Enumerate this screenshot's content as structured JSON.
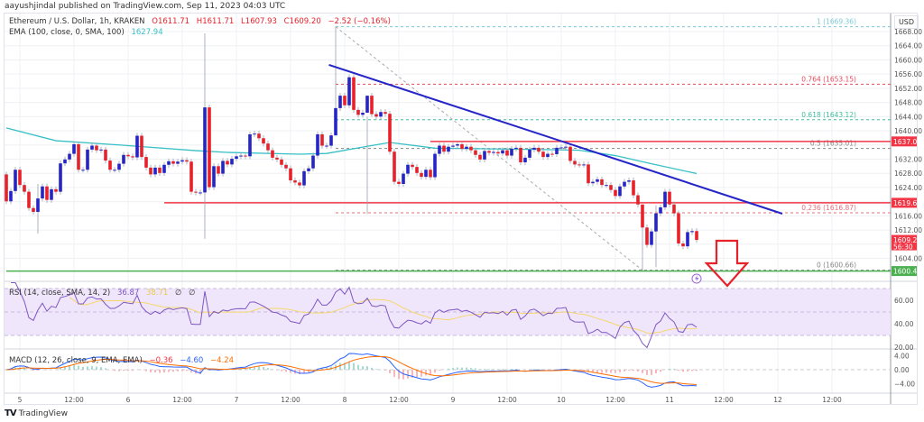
{
  "publisher_line": "aayushjindal published on TradingView.com, Sep 11, 2023 04:03 UTC",
  "legend": {
    "symbol": "Ethereum / U.S. Dollar, 1h, KRAKEN",
    "open": "O1611.71",
    "high": "H1611.71",
    "low": "L1607.93",
    "close": "C1609.20",
    "change": "−2.52 (−0.16%)",
    "ema_label": "EMA (100, close, 0, SMA, 100)",
    "ema_value": "1627.94"
  },
  "rsi_legend": {
    "label": "RSI (14, close, SMA, 14, 2)",
    "value": "36.87",
    "sma": "38.71",
    "extra1": "∅",
    "extra2": "∅"
  },
  "macd_legend": {
    "label": "MACD (12, 26, close, 9, EMA, EMA)",
    "hist": "−0.36",
    "macd": "−4.60",
    "signal": "−4.24"
  },
  "price_axis": {
    "currency": "USD",
    "ticks": [
      "1668.00",
      "1664.00",
      "1660.00",
      "1656.00",
      "1652.00",
      "1648.00",
      "1644.00",
      "1640.00",
      "1632.00",
      "1628.00",
      "1624.00",
      "1616.00",
      "1612.00",
      "1604.00"
    ],
    "tags": [
      {
        "text": "1637.00",
        "value": 1637.0,
        "color": "#f23645"
      },
      {
        "text": "1619.68",
        "value": 1619.68,
        "color": "#f23645"
      },
      {
        "text": "1609.20",
        "sub": "56:30",
        "value": 1609.2,
        "color": "#f23645"
      },
      {
        "text": "1600.42",
        "value": 1600.42,
        "color": "#4caf50"
      }
    ]
  },
  "rsi_axis": {
    "ticks": [
      "60.00",
      "40.00",
      "20.00"
    ]
  },
  "macd_axis": {
    "ticks": [
      "4.00",
      "0.00",
      "−4.00"
    ]
  },
  "time_axis": {
    "labels": [
      "5",
      "12:00",
      "6",
      "12:00",
      "7",
      "12:00",
      "8",
      "12:00",
      "9",
      "12:00",
      "10",
      "12:00",
      "11",
      "12:00",
      "12",
      "12:00"
    ]
  },
  "footer": {
    "brand": "TradingView"
  },
  "colors": {
    "up": "#2424c8",
    "down": "#e8202a",
    "ema": "#37c0c6",
    "trendline": "#2424c8",
    "hline": "#f23645",
    "support": "#4caf50",
    "rsi": "#7e57c2",
    "rsi_sma": "#f5d76e",
    "macd": "#2962ff",
    "signal": "#ff6d00",
    "arrow": "#e8202a"
  },
  "chart_data": {
    "type": "candlestick",
    "symbol": "ETHUSD",
    "interval": "1h",
    "first_candle_time": "2023-09-04 21:00",
    "ylim": [
      1598,
      1671
    ],
    "first_open": 1627.7,
    "closes": [
      1620.1,
      1623.0,
      1629.0,
      1624.7,
      1622.8,
      1618.2,
      1617.1,
      1620.9,
      1624.3,
      1620.5,
      1623.5,
      1622.8,
      1630.8,
      1631.9,
      1633.5,
      1636.2,
      1629.0,
      1629.0,
      1634.7,
      1635.8,
      1634.5,
      1634.7,
      1631.6,
      1629.0,
      1629.0,
      1630.7,
      1633.2,
      1632.8,
      1632.5,
      1638.6,
      1632.6,
      1629.6,
      1627.7,
      1629.6,
      1628.1,
      1630.4,
      1631.4,
      1630.7,
      1631.3,
      1631.7,
      1631.3,
      1622.8,
      1622.6,
      1622.6,
      1646.6,
      1624.1,
      1630.0,
      1627.9,
      1631.5,
      1630.5,
      1632.1,
      1632.8,
      1633.0,
      1632.8,
      1639.0,
      1639.2,
      1637.9,
      1636.4,
      1634.5,
      1632.4,
      1631.9,
      1630.4,
      1629.4,
      1626.0,
      1625.4,
      1624.6,
      1628.6,
      1629.4,
      1633.0,
      1639.0,
      1635.8,
      1635.8,
      1638.7,
      1646.4,
      1649.9,
      1647.2,
      1655.1,
      1645.9,
      1644.5,
      1645.1,
      1649.9,
      1644.7,
      1644.0,
      1645.3,
      1644.8,
      1634.1,
      1625.6,
      1625.0,
      1627.9,
      1630.4,
      1629.8,
      1628.1,
      1627.0,
      1629.0,
      1626.9,
      1633.5,
      1635.8,
      1634.1,
      1635.5,
      1635.8,
      1636.2,
      1634.9,
      1635.5,
      1634.5,
      1633.2,
      1631.9,
      1634.3,
      1633.8,
      1634.0,
      1633.6,
      1634.5,
      1633.0,
      1634.9,
      1635.2,
      1631.1,
      1632.4,
      1634.7,
      1635.2,
      1634.1,
      1632.6,
      1633.5,
      1633.4,
      1635.2,
      1635.3,
      1635.5,
      1631.5,
      1630.5,
      1630.4,
      1630.5,
      1625.2,
      1625.6,
      1626.3,
      1624.7,
      1624.7,
      1623.3,
      1621.6,
      1624.3,
      1625.6,
      1626.0,
      1621.8,
      1619.2,
      1612.7,
      1607.8,
      1611.6,
      1616.7,
      1618.4,
      1622.8,
      1619.2,
      1616.7,
      1608.2,
      1607.4,
      1611.4,
      1611.7,
      1609.2
    ],
    "notable_wicks": [
      {
        "time": "2023-09-06 17:00",
        "high": 1667.5,
        "low": 1609.5
      },
      {
        "time": "2023-09-05 04:00",
        "high": 1625.0,
        "low": 1611.0
      },
      {
        "time": "2023-09-07 22:00",
        "high": 1669.36,
        "low": 1640.0
      },
      {
        "time": "2023-09-08 05:00",
        "high": 1644.0,
        "low": 1616.5
      },
      {
        "time": "2023-09-10 18:00",
        "high": 1619.0,
        "low": 1600.66
      },
      {
        "time": "2023-09-10 21:00",
        "high": 1619.0,
        "low": 1601.5
      }
    ],
    "ema": {
      "period": 100,
      "points": [
        {
          "time": "2023-09-04 21:00",
          "value": 1640.8
        },
        {
          "time": "2023-09-05 08:00",
          "value": 1637.2
        },
        {
          "time": "2023-09-05 22:00",
          "value": 1636.0
        },
        {
          "time": "2023-09-06 15:00",
          "value": 1634.4
        },
        {
          "time": "2023-09-06 22:00",
          "value": 1633.9
        },
        {
          "time": "2023-09-07 14:00",
          "value": 1633.4
        },
        {
          "time": "2023-09-07 20:00",
          "value": 1633.6
        },
        {
          "time": "2023-09-08 04:00",
          "value": 1635.4
        },
        {
          "time": "2023-09-08 10:00",
          "value": 1636.7
        },
        {
          "time": "2023-09-08 20:00",
          "value": 1635.1
        },
        {
          "time": "2023-09-09 20:00",
          "value": 1634.7
        },
        {
          "time": "2023-09-10 04:00",
          "value": 1634.5
        },
        {
          "time": "2023-09-10 12:00",
          "value": 1633.0
        },
        {
          "time": "2023-09-10 20:00",
          "value": 1630.7
        },
        {
          "time": "2023-09-11 06:00",
          "value": 1627.94
        }
      ]
    },
    "drawings": {
      "trendline": {
        "from": {
          "time": "2023-09-07 20:30",
          "price": 1658.6
        },
        "to": {
          "time": "2023-09-12 01:00",
          "price": 1616.6
        }
      },
      "horizontal_lines": [
        {
          "price": 1637.0,
          "from_time": "2023-09-08 19:00",
          "color": "#f23645"
        },
        {
          "price": 1619.68,
          "from_time": "2023-09-06 08:00",
          "color": "#f23645"
        },
        {
          "price": 1600.42,
          "from_time": "2023-09-04 21:00",
          "color": "#4caf50"
        }
      ],
      "fibonacci": {
        "from": {
          "time": "2023-09-07 22:00",
          "price": 1669.36
        },
        "to": {
          "time": "2023-09-10 18:00",
          "price": 1600.66
        },
        "levels": [
          {
            "label": "1 (1669.36)",
            "price": 1669.36,
            "color": "#7ec8d6"
          },
          {
            "label": "0.764 (1653.15)",
            "price": 1653.15,
            "color": "#e8485a"
          },
          {
            "label": "0.618 (1643.12)",
            "price": 1643.12,
            "color": "#3fbf9a"
          },
          {
            "label": "0.5 (1635.01)",
            "price": 1635.01,
            "color": "#888888"
          },
          {
            "label": "0.236 (1616.87)",
            "price": 1616.87,
            "color": "#e8707a"
          },
          {
            "label": "0 (1600.66)",
            "price": 1600.66,
            "color": "#888888"
          }
        ]
      },
      "down_arrow": {
        "color": "#e8202a"
      },
      "event_icon": "lightning-icon"
    },
    "rsi": {
      "period": 14,
      "sma": 14,
      "upper": 70,
      "lower": 30,
      "mid": 50,
      "ylim": [
        15,
        75
      ]
    },
    "macd": {
      "fast": 12,
      "slow": 26,
      "signal": 9,
      "ylim": [
        -5,
        5
      ]
    }
  }
}
